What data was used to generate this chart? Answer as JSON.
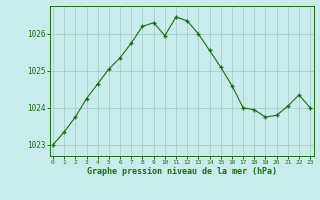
{
  "x": [
    0,
    1,
    2,
    3,
    4,
    5,
    6,
    7,
    8,
    9,
    10,
    11,
    12,
    13,
    14,
    15,
    16,
    17,
    18,
    19,
    20,
    21,
    22,
    23
  ],
  "y": [
    1023.0,
    1023.35,
    1023.75,
    1024.25,
    1024.65,
    1025.05,
    1025.35,
    1025.75,
    1026.2,
    1026.3,
    1025.95,
    1026.45,
    1026.35,
    1026.0,
    1025.55,
    1025.1,
    1024.6,
    1024.0,
    1023.95,
    1023.75,
    1023.8,
    1024.05,
    1024.35,
    1024.0
  ],
  "line_color": "#1a6b1a",
  "marker_color": "#1a6b1a",
  "bg_color": "#c8ecea",
  "grid_color": "#a0c8c8",
  "xlabel": "Graphe pression niveau de la mer (hPa)",
  "xlabel_color": "#1a6b1a",
  "tick_color": "#1a6b1a",
  "ylim": [
    1022.7,
    1026.75
  ],
  "yticks": [
    1023,
    1024,
    1025,
    1026
  ],
  "xticks": [
    0,
    1,
    2,
    3,
    4,
    5,
    6,
    7,
    8,
    9,
    10,
    11,
    12,
    13,
    14,
    15,
    16,
    17,
    18,
    19,
    20,
    21,
    22,
    23
  ],
  "xlim": [
    -0.3,
    23.3
  ]
}
